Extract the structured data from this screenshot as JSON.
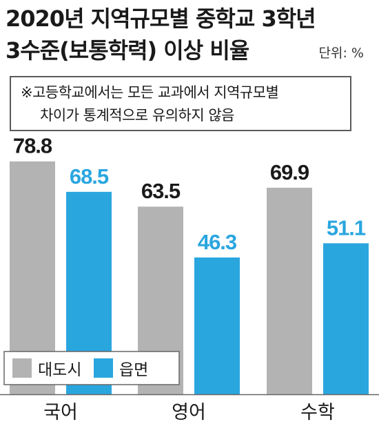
{
  "title_line1": "2020년 지역규모별 중학교 3학년",
  "title_line2": "3수준(보통학력) 이상 비율",
  "unit": "단위: %",
  "note_line1": "※고등학교에서는 모든 교과에서 지역규모별",
  "note_line2": "차이가 통계적으로 유의하지 않음",
  "colors": {
    "metro": "#b3b3b3",
    "rural": "#2aa6df",
    "label_dark": "#1a1a1a",
    "label_blue": "#2aa6df"
  },
  "chart_data": {
    "type": "bar",
    "categories": [
      "국어",
      "영어",
      "수학"
    ],
    "series": [
      {
        "name": "대도시",
        "values": [
          78.8,
          63.5,
          69.9
        ]
      },
      {
        "name": "읍면",
        "values": [
          68.5,
          46.3,
          51.1
        ]
      }
    ],
    "ylim": [
      0,
      100
    ],
    "legend_position": "bottom-left",
    "grid": false
  }
}
